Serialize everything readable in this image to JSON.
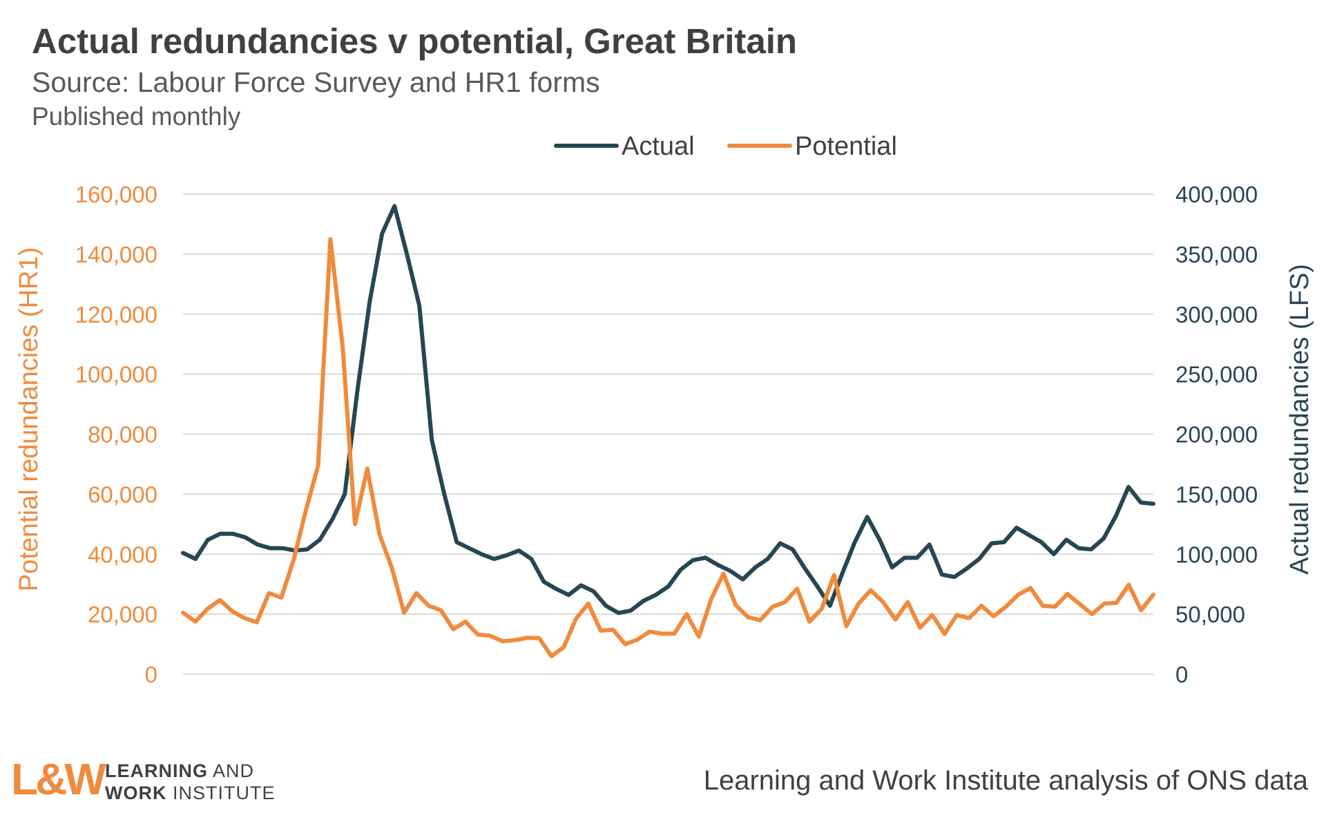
{
  "header": {
    "title": "Actual redundancies v potential, Great Britain",
    "subtitle": "Source: Labour Force Survey and HR1 forms",
    "note": "Published monthly"
  },
  "footer": {
    "logo_mark": "L&W",
    "logo_line1_bold": "LEARNING",
    "logo_line1_rest": " AND",
    "logo_line2_bold": "WORK",
    "logo_line2_rest": " INSTITUTE",
    "credit": "Learning and Work Institute analysis of ONS data"
  },
  "colors": {
    "actual": "#264653",
    "potential": "#f08a3c",
    "grid": "#d9d9d9"
  },
  "chart_data": {
    "type": "line",
    "grid": true,
    "legend_position": "top",
    "legend": [
      "Actual",
      "Potential"
    ],
    "y_left": {
      "label": "Potential redundancies (HR1)",
      "range": [
        0,
        160000
      ],
      "ticks": [
        "0",
        "20,000",
        "40,000",
        "60,000",
        "80,000",
        "100,000",
        "120,000",
        "140,000",
        "160,000"
      ]
    },
    "y_right": {
      "label": "Actual redundancies (LFS)",
      "range": [
        0,
        400000
      ],
      "ticks": [
        "0",
        "50,000",
        "100,000",
        "150,000",
        "200,000",
        "250,000",
        "300,000",
        "350,000",
        "400,000"
      ]
    },
    "series": [
      {
        "name": "Actual",
        "axis": "right",
        "values": [
          101000,
          96000,
          112000,
          117000,
          117000,
          114000,
          108000,
          105000,
          105000,
          103000,
          104000,
          112000,
          129000,
          150000,
          235000,
          310000,
          367000,
          390000,
          350000,
          307000,
          195000,
          150000,
          110000,
          105000,
          100000,
          96000,
          99000,
          103000,
          96000,
          77000,
          71000,
          66000,
          74000,
          69000,
          57000,
          51000,
          53000,
          61000,
          66000,
          73000,
          87000,
          95000,
          97000,
          91000,
          86000,
          79000,
          89000,
          96000,
          109000,
          104000,
          88000,
          73000,
          57000,
          84000,
          110000,
          131000,
          112000,
          89000,
          97000,
          97000,
          108000,
          83000,
          81000,
          88000,
          96000,
          109000,
          110000,
          122000,
          116000,
          110000,
          100000,
          112000,
          105000,
          104000,
          113000,
          132000,
          156000,
          143000,
          142000
        ]
      },
      {
        "name": "Potential",
        "axis": "left",
        "values": [
          20500,
          17500,
          21800,
          24700,
          21000,
          18700,
          17300,
          27000,
          25500,
          38000,
          54500,
          69500,
          145000,
          109000,
          50000,
          68500,
          46500,
          35500,
          20500,
          27000,
          22800,
          21300,
          15000,
          17500,
          13200,
          12800,
          11000,
          11300,
          12100,
          12000,
          6000,
          9000,
          18500,
          23500,
          14500,
          14800,
          10000,
          11500,
          14200,
          13500,
          13500,
          20000,
          12500,
          25000,
          33500,
          23000,
          19000,
          18000,
          22500,
          24000,
          28500,
          17500,
          21800,
          33000,
          16000,
          23500,
          28000,
          24000,
          18200,
          24000,
          15500,
          19700,
          13400,
          19700,
          18700,
          22800,
          19300,
          22500,
          26500,
          28700,
          22800,
          22500,
          26700,
          23400,
          20000,
          23500,
          23800,
          29800,
          21300,
          26500
        ]
      }
    ]
  }
}
